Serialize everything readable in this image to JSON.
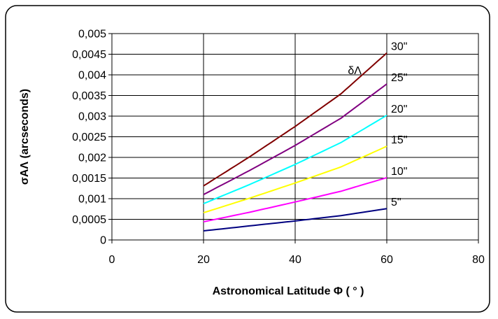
{
  "chart_data": {
    "type": "line",
    "title": "",
    "xlabel": "Astronomical Latitude Φ ( ° )",
    "ylabel": "σAΛ (arcseconds)",
    "xlim": [
      0,
      80
    ],
    "ylim": [
      0,
      0.005
    ],
    "x_ticks": [
      "0",
      "20",
      "40",
      "60",
      "80"
    ],
    "y_ticks": [
      "0",
      "0,0005",
      "0,001",
      "0,0015",
      "0,002",
      "0,0025",
      "0,003",
      "0,0035",
      "0,004",
      "0,0045",
      "0,005"
    ],
    "grid": true,
    "legend": "none",
    "annotation": "δΛ",
    "x": [
      20,
      30,
      40,
      50,
      60
    ],
    "series": [
      {
        "label": "5\"",
        "color": "#000080",
        "values": [
          0.00022,
          0.00034,
          0.00046,
          0.00059,
          0.00076
        ]
      },
      {
        "label": "10\"",
        "color": "#ff00ff",
        "values": [
          0.00044,
          0.00067,
          0.00092,
          0.00118,
          0.00151
        ]
      },
      {
        "label": "15\"",
        "color": "#ffff00",
        "values": [
          0.00066,
          0.00101,
          0.00138,
          0.00177,
          0.00227
        ]
      },
      {
        "label": "20\"",
        "color": "#00ffff",
        "values": [
          0.00088,
          0.00134,
          0.00183,
          0.00236,
          0.00302
        ]
      },
      {
        "label": "25\"",
        "color": "#800080",
        "values": [
          0.0011,
          0.00168,
          0.00229,
          0.00295,
          0.00378
        ]
      },
      {
        "label": "30\"",
        "color": "#800000",
        "values": [
          0.00131,
          0.00201,
          0.00275,
          0.00354,
          0.00453
        ]
      }
    ]
  }
}
